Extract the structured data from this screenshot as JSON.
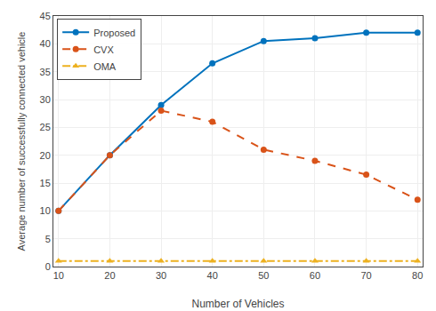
{
  "chart_data": {
    "type": "line",
    "xlabel": "Number of Vehicles",
    "ylabel": "Average number of successfully connected vehicle",
    "x": [
      10,
      20,
      30,
      40,
      50,
      60,
      70,
      80
    ],
    "series": [
      {
        "name": "Proposed",
        "color": "#0072BD",
        "line_style": "solid",
        "marker": "circle",
        "values": [
          10,
          20,
          29,
          36.5,
          40.5,
          41,
          42,
          42
        ]
      },
      {
        "name": "CVX",
        "color": "#D95319",
        "line_style": "dashed",
        "marker": "circle",
        "values": [
          10,
          20,
          28,
          26,
          21,
          19,
          16.5,
          12
        ]
      },
      {
        "name": "OMA",
        "color": "#EDB120",
        "line_style": "dashdot",
        "marker": "triangle-up",
        "values": [
          1,
          1,
          1,
          1,
          1,
          1,
          1,
          1
        ]
      }
    ],
    "xlim": [
      9,
      81
    ],
    "xticks": [
      10,
      20,
      30,
      40,
      50,
      60,
      70,
      80
    ],
    "ylim": [
      0,
      45
    ],
    "yticks": [
      0,
      5,
      10,
      15,
      20,
      25,
      30,
      35,
      40,
      45
    ],
    "grid": true,
    "legend": "upper left"
  }
}
